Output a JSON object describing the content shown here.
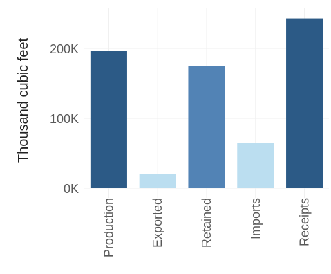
{
  "chart_data": {
    "type": "bar",
    "title": "",
    "xlabel": "",
    "ylabel": "Thousand cubic feet",
    "categories": [
      "Production",
      "Exported",
      "Retained",
      "Imports",
      "Receipts"
    ],
    "values": [
      197000,
      20000,
      175000,
      65000,
      243000
    ],
    "ylim": [
      0,
      250000
    ],
    "yticks": [
      0,
      100000,
      200000
    ],
    "ytick_labels": [
      "0K",
      "100K",
      "200K"
    ],
    "bar_colors": [
      "#2c5a86",
      "#bbdef0",
      "#5283b5",
      "#bbdef0",
      "#2c5a86"
    ],
    "grid": true,
    "grid_color": "#efefef",
    "legend": "none"
  }
}
